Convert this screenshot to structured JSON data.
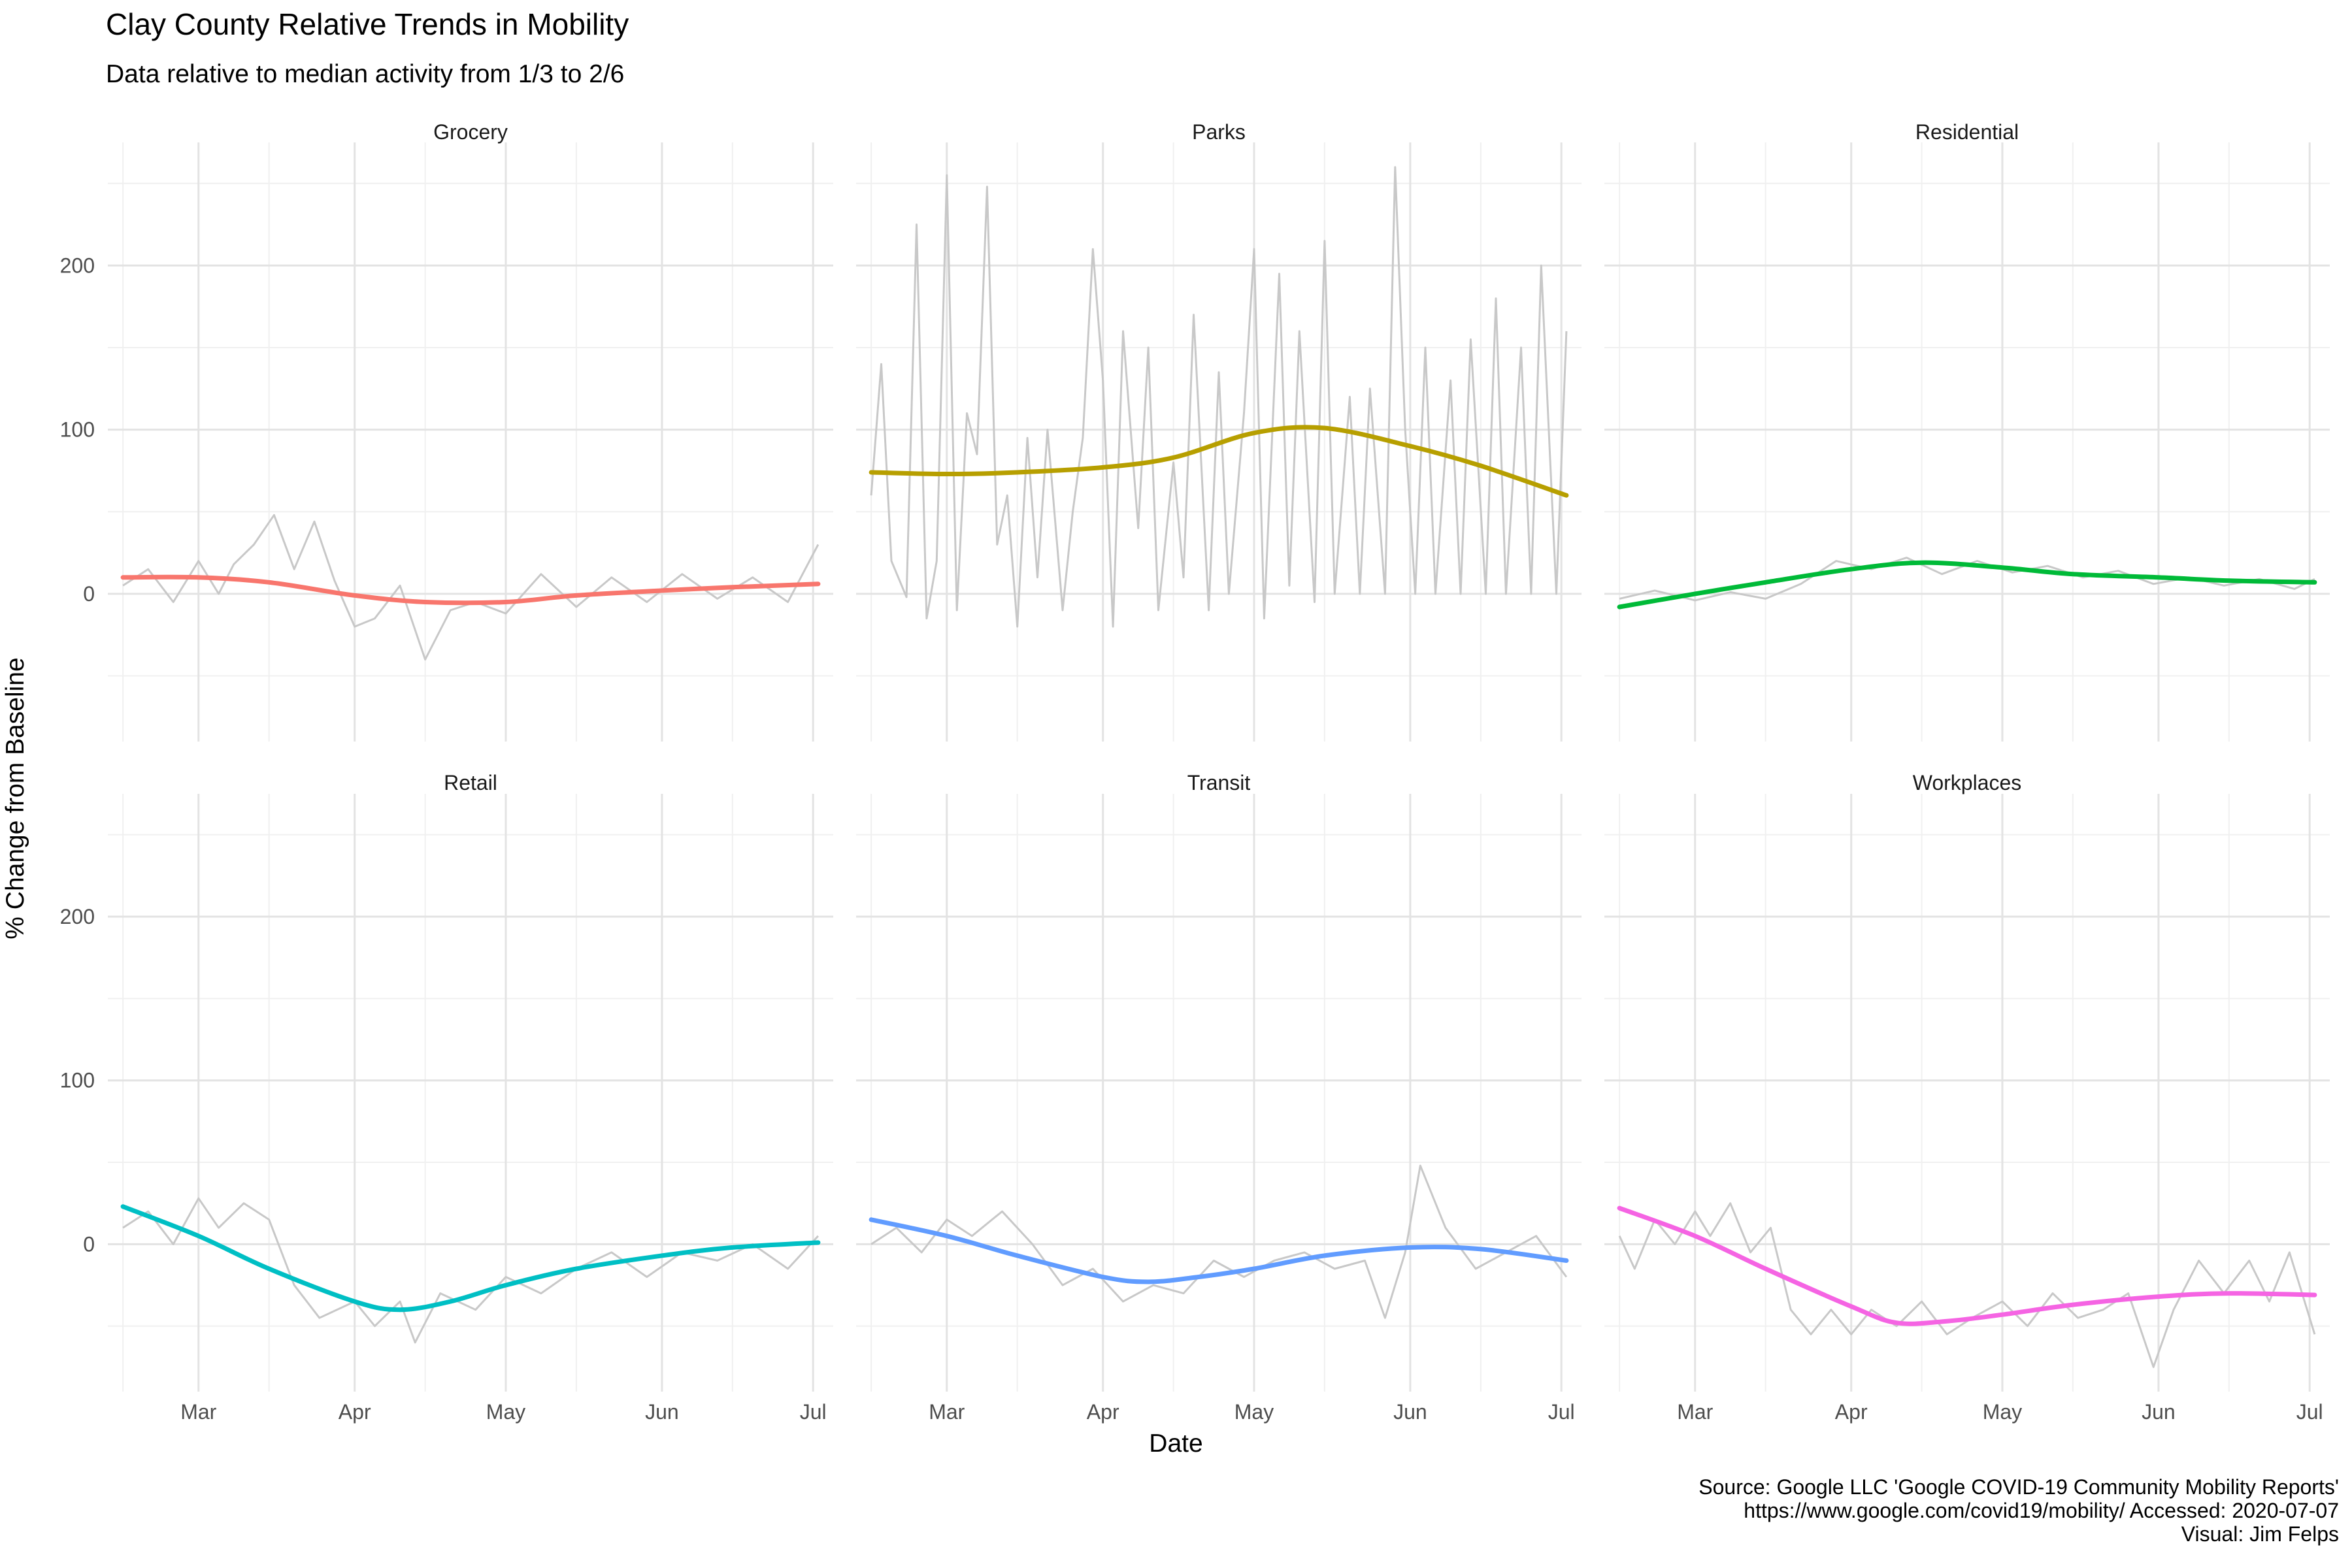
{
  "title": "Clay County Relative Trends in Mobility",
  "subtitle": "Data relative to median activity from 1/3 to 2/6",
  "xlabel": "Date",
  "ylabel": "% Change from Baseline",
  "caption": {
    "line1": "Source: Google LLC 'Google COVID-19 Community Mobility Reports'",
    "line2": "https://www.google.com/covid19/mobility/ Accessed: 2020-07-07",
    "line3": "Visual: Jim Felps"
  },
  "chart_data": {
    "type": "line",
    "facets": [
      "Grocery",
      "Parks",
      "Residential",
      "Retail",
      "Transit",
      "Workplaces"
    ],
    "y_ticks": [
      0,
      100,
      200
    ],
    "x_ticks": [
      "Mar",
      "Apr",
      "May",
      "Jun",
      "Jul"
    ],
    "x_range": [
      "2020-02-15",
      "2020-07-02"
    ],
    "ylim": [
      -90,
      275
    ],
    "raw_color": "#c8c8c8",
    "series": [
      {
        "name": "Grocery",
        "color": "#F8766D",
        "smooth_x": [
          "2020-02-15",
          "2020-03-01",
          "2020-03-15",
          "2020-04-01",
          "2020-04-15",
          "2020-05-01",
          "2020-05-15",
          "2020-06-01",
          "2020-06-15",
          "2020-07-02"
        ],
        "smooth_y": [
          10,
          10,
          7,
          -1,
          -5,
          -5,
          -1,
          2,
          4,
          6
        ],
        "raw_x": [
          "2020-02-15",
          "2020-02-20",
          "2020-02-25",
          "2020-03-01",
          "2020-03-05",
          "2020-03-08",
          "2020-03-12",
          "2020-03-16",
          "2020-03-20",
          "2020-03-24",
          "2020-03-28",
          "2020-04-01",
          "2020-04-05",
          "2020-04-10",
          "2020-04-15",
          "2020-04-20",
          "2020-04-25",
          "2020-05-01",
          "2020-05-08",
          "2020-05-15",
          "2020-05-22",
          "2020-05-29",
          "2020-06-05",
          "2020-06-12",
          "2020-06-19",
          "2020-06-26",
          "2020-07-02"
        ],
        "raw_y": [
          5,
          15,
          -5,
          20,
          0,
          18,
          30,
          48,
          15,
          44,
          8,
          -20,
          -15,
          5,
          -40,
          -10,
          -5,
          -12,
          12,
          -8,
          10,
          -5,
          12,
          -3,
          10,
          -5,
          30
        ]
      },
      {
        "name": "Parks",
        "color": "#B79F00",
        "smooth_x": [
          "2020-02-15",
          "2020-03-01",
          "2020-03-15",
          "2020-04-01",
          "2020-04-15",
          "2020-05-01",
          "2020-05-15",
          "2020-06-01",
          "2020-06-15",
          "2020-07-02"
        ],
        "smooth_y": [
          74,
          73,
          74,
          77,
          83,
          98,
          101,
          90,
          78,
          60
        ],
        "raw_x": [
          "2020-02-15",
          "2020-02-17",
          "2020-02-19",
          "2020-02-22",
          "2020-02-24",
          "2020-02-26",
          "2020-02-28",
          "2020-03-01",
          "2020-03-03",
          "2020-03-05",
          "2020-03-07",
          "2020-03-09",
          "2020-03-11",
          "2020-03-13",
          "2020-03-15",
          "2020-03-17",
          "2020-03-19",
          "2020-03-21",
          "2020-03-24",
          "2020-03-26",
          "2020-03-28",
          "2020-03-30",
          "2020-04-01",
          "2020-04-03",
          "2020-04-05",
          "2020-04-08",
          "2020-04-10",
          "2020-04-12",
          "2020-04-15",
          "2020-04-17",
          "2020-04-19",
          "2020-04-22",
          "2020-04-24",
          "2020-04-26",
          "2020-04-29",
          "2020-05-01",
          "2020-05-03",
          "2020-05-06",
          "2020-05-08",
          "2020-05-10",
          "2020-05-13",
          "2020-05-15",
          "2020-05-17",
          "2020-05-20",
          "2020-05-22",
          "2020-05-24",
          "2020-05-27",
          "2020-05-29",
          "2020-05-31",
          "2020-06-02",
          "2020-06-04",
          "2020-06-06",
          "2020-06-09",
          "2020-06-11",
          "2020-06-13",
          "2020-06-16",
          "2020-06-18",
          "2020-06-20",
          "2020-06-23",
          "2020-06-25",
          "2020-06-27",
          "2020-06-30",
          "2020-07-02"
        ],
        "raw_y": [
          60,
          140,
          20,
          -2,
          225,
          -15,
          20,
          255,
          -10,
          110,
          85,
          248,
          30,
          60,
          -20,
          95,
          10,
          100,
          -10,
          50,
          95,
          210,
          130,
          -20,
          160,
          40,
          150,
          -10,
          80,
          10,
          170,
          -10,
          135,
          0,
          110,
          210,
          -15,
          195,
          5,
          160,
          -5,
          215,
          0,
          120,
          0,
          125,
          0,
          260,
          100,
          0,
          150,
          0,
          130,
          0,
          155,
          0,
          180,
          0,
          150,
          0,
          200,
          0,
          160
        ]
      },
      {
        "name": "Residential",
        "color": "#00BA38",
        "smooth_x": [
          "2020-02-15",
          "2020-03-01",
          "2020-03-15",
          "2020-04-01",
          "2020-04-15",
          "2020-05-01",
          "2020-05-15",
          "2020-06-01",
          "2020-06-15",
          "2020-07-02"
        ],
        "smooth_y": [
          -8,
          0,
          7,
          15,
          19,
          16,
          12,
          10,
          8,
          7
        ],
        "raw_x": [
          "2020-02-15",
          "2020-02-22",
          "2020-03-01",
          "2020-03-08",
          "2020-03-15",
          "2020-03-22",
          "2020-03-29",
          "2020-04-05",
          "2020-04-12",
          "2020-04-19",
          "2020-04-26",
          "2020-05-03",
          "2020-05-10",
          "2020-05-17",
          "2020-05-24",
          "2020-05-31",
          "2020-06-07",
          "2020-06-14",
          "2020-06-21",
          "2020-06-28",
          "2020-07-02"
        ],
        "raw_y": [
          -3,
          2,
          -4,
          1,
          -3,
          6,
          20,
          15,
          22,
          12,
          20,
          13,
          17,
          10,
          14,
          6,
          10,
          5,
          9,
          3,
          9
        ]
      },
      {
        "name": "Retail",
        "color": "#00BFC4",
        "smooth_x": [
          "2020-02-15",
          "2020-03-01",
          "2020-03-15",
          "2020-04-01",
          "2020-04-10",
          "2020-04-20",
          "2020-05-01",
          "2020-05-15",
          "2020-06-01",
          "2020-06-15",
          "2020-07-02"
        ],
        "smooth_y": [
          23,
          5,
          -15,
          -35,
          -40,
          -35,
          -25,
          -15,
          -7,
          -2,
          1
        ],
        "raw_x": [
          "2020-02-15",
          "2020-02-20",
          "2020-02-25",
          "2020-03-01",
          "2020-03-05",
          "2020-03-10",
          "2020-03-15",
          "2020-03-20",
          "2020-03-25",
          "2020-04-01",
          "2020-04-05",
          "2020-04-10",
          "2020-04-13",
          "2020-04-18",
          "2020-04-25",
          "2020-05-01",
          "2020-05-08",
          "2020-05-15",
          "2020-05-22",
          "2020-05-29",
          "2020-06-05",
          "2020-06-12",
          "2020-06-19",
          "2020-06-26",
          "2020-07-02"
        ],
        "raw_y": [
          10,
          20,
          0,
          28,
          10,
          25,
          15,
          -25,
          -45,
          -35,
          -50,
          -35,
          -60,
          -30,
          -40,
          -20,
          -30,
          -15,
          -5,
          -20,
          -5,
          -10,
          0,
          -15,
          5
        ]
      },
      {
        "name": "Transit",
        "color": "#619CFF",
        "smooth_x": [
          "2020-02-15",
          "2020-03-01",
          "2020-03-15",
          "2020-04-01",
          "2020-04-10",
          "2020-04-20",
          "2020-05-01",
          "2020-05-15",
          "2020-06-01",
          "2020-06-15",
          "2020-07-02"
        ],
        "smooth_y": [
          15,
          5,
          -7,
          -20,
          -23,
          -20,
          -15,
          -7,
          -2,
          -3,
          -10
        ],
        "raw_x": [
          "2020-02-15",
          "2020-02-20",
          "2020-02-25",
          "2020-03-01",
          "2020-03-06",
          "2020-03-12",
          "2020-03-18",
          "2020-03-24",
          "2020-03-30",
          "2020-04-05",
          "2020-04-11",
          "2020-04-17",
          "2020-04-23",
          "2020-04-29",
          "2020-05-05",
          "2020-05-11",
          "2020-05-17",
          "2020-05-23",
          "2020-05-27",
          "2020-05-31",
          "2020-06-03",
          "2020-06-08",
          "2020-06-14",
          "2020-06-20",
          "2020-06-26",
          "2020-07-02"
        ],
        "raw_y": [
          0,
          10,
          -5,
          15,
          5,
          20,
          0,
          -25,
          -15,
          -35,
          -25,
          -30,
          -10,
          -20,
          -10,
          -5,
          -15,
          -10,
          -45,
          -5,
          48,
          10,
          -15,
          -5,
          5,
          -20
        ]
      },
      {
        "name": "Workplaces",
        "color": "#F564E3",
        "smooth_x": [
          "2020-02-15",
          "2020-03-01",
          "2020-03-15",
          "2020-04-01",
          "2020-04-10",
          "2020-04-20",
          "2020-05-01",
          "2020-05-15",
          "2020-06-01",
          "2020-06-15",
          "2020-07-02"
        ],
        "smooth_y": [
          22,
          5,
          -15,
          -38,
          -48,
          -47,
          -43,
          -37,
          -32,
          -30,
          -31
        ],
        "raw_x": [
          "2020-02-15",
          "2020-02-18",
          "2020-02-22",
          "2020-02-26",
          "2020-03-01",
          "2020-03-04",
          "2020-03-08",
          "2020-03-12",
          "2020-03-16",
          "2020-03-20",
          "2020-03-24",
          "2020-03-28",
          "2020-04-01",
          "2020-04-05",
          "2020-04-10",
          "2020-04-15",
          "2020-04-20",
          "2020-04-25",
          "2020-05-01",
          "2020-05-06",
          "2020-05-11",
          "2020-05-16",
          "2020-05-21",
          "2020-05-26",
          "2020-05-31",
          "2020-06-04",
          "2020-06-09",
          "2020-06-14",
          "2020-06-19",
          "2020-06-23",
          "2020-06-27",
          "2020-07-01",
          "2020-07-02"
        ],
        "raw_y": [
          5,
          -15,
          15,
          0,
          20,
          5,
          25,
          -5,
          10,
          -40,
          -55,
          -40,
          -55,
          -40,
          -50,
          -35,
          -55,
          -45,
          -35,
          -50,
          -30,
          -45,
          -40,
          -30,
          -75,
          -40,
          -10,
          -30,
          -10,
          -35,
          -5,
          -45,
          -55
        ]
      }
    ]
  }
}
